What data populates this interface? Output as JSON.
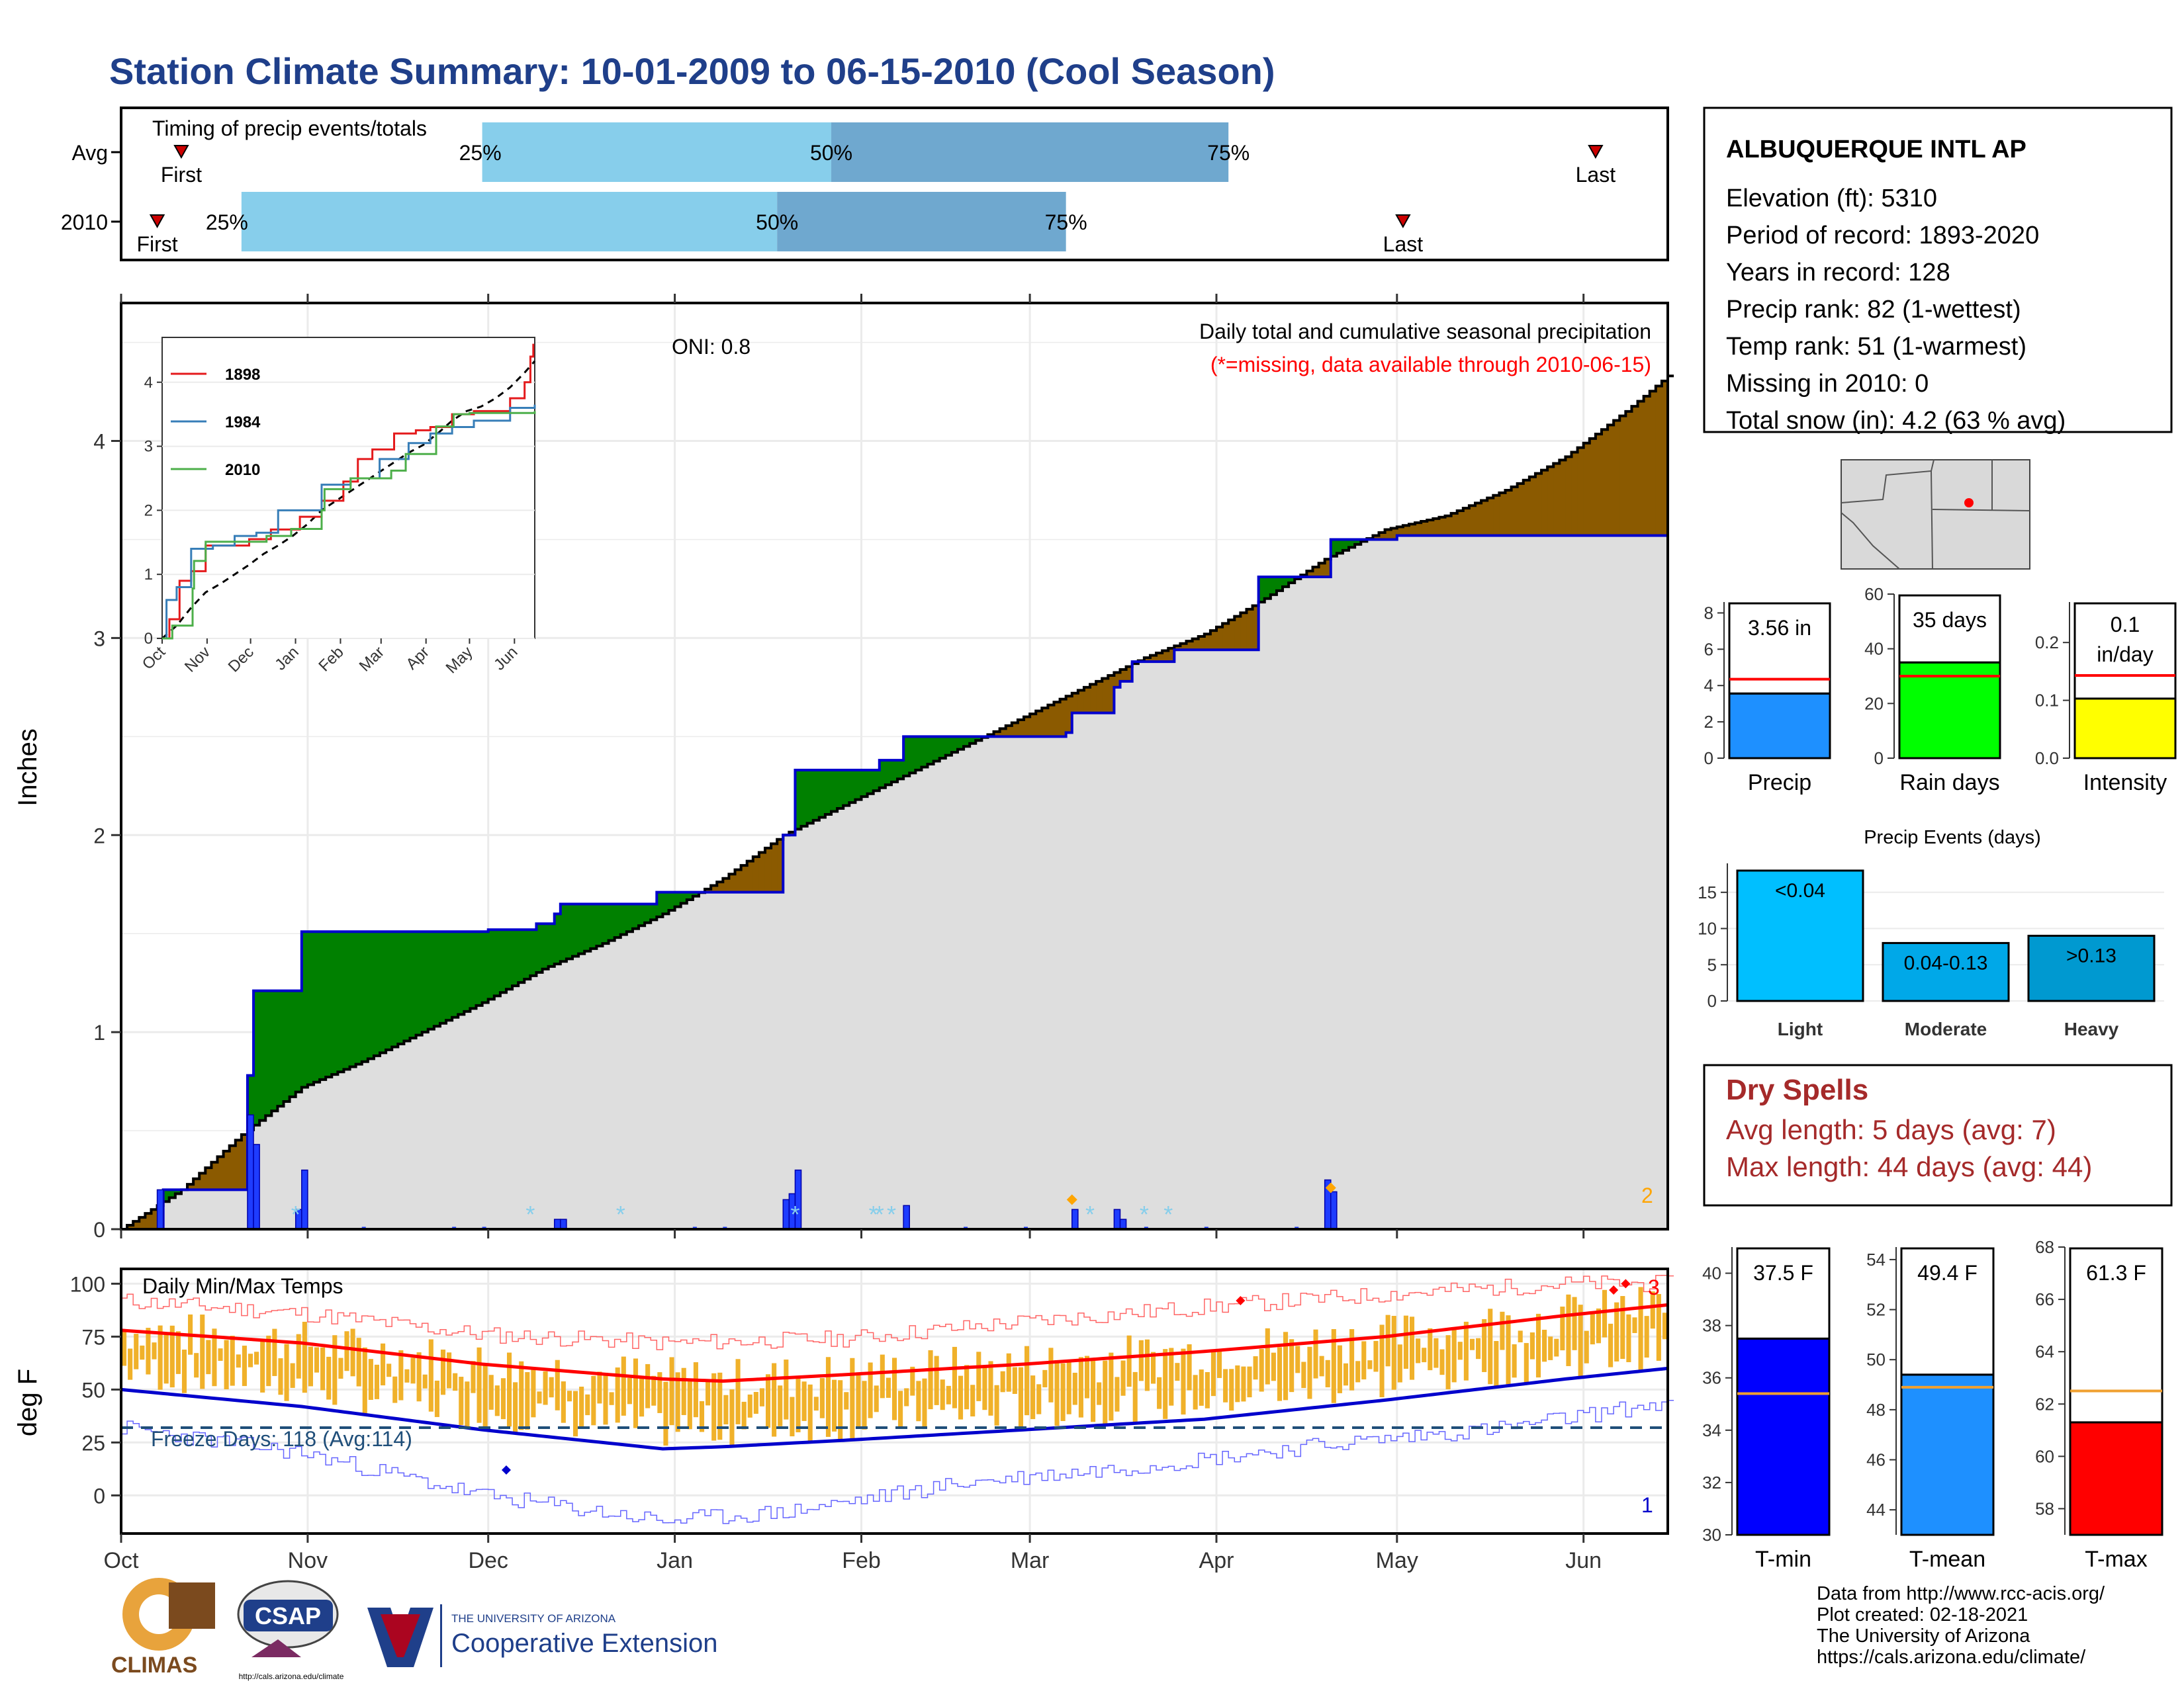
{
  "title": "Station Climate Summary: 10-01-2009 to 06-15-2010 (Cool Season)",
  "timing": {
    "title": "Timing of precip events/totals",
    "rows": [
      {
        "label": "Avg",
        "first_day": 10,
        "p25_day": 60,
        "p50_day": 118,
        "p75_day": 184,
        "last_day": 245,
        "first_label": "First",
        "p25_label": "25%",
        "p50_label": "50%",
        "p75_label": "75%",
        "last_label": "Last"
      },
      {
        "label": "2010",
        "first_day": 6,
        "p25_day": 20,
        "p50_day": 109,
        "p75_day": 157,
        "last_day": 213,
        "first_label": "First",
        "p25_label": "25%",
        "p50_label": "50%",
        "p75_label": "75%",
        "last_label": "Last"
      }
    ]
  },
  "station": {
    "name": "ALBUQUERQUE INTL AP",
    "lines": [
      "Elevation (ft): 5310",
      "Period of record: 1893-2020",
      "Years in record: 128",
      "Precip rank: 82 (1-wettest)",
      "Temp rank: 51 (1-warmest)",
      "Missing in 2010: 0",
      "Total snow (in): 4.2 (63 % avg)"
    ]
  },
  "precip_chart": {
    "ylabel": "Inches",
    "oni": "ONI: 0.8",
    "note1": "Daily total and cumulative seasonal precipitation",
    "note2": "(*=missing, data available through 2010-06-15)",
    "corner": "2",
    "months": [
      "Oct",
      "Nov",
      "Dec",
      "Jan",
      "Feb",
      "Mar",
      "Apr",
      "May",
      "Jun"
    ],
    "y_ticks": [
      "0",
      "1",
      "2",
      "3",
      "4"
    ]
  },
  "inset": {
    "months": [
      "Oct",
      "Nov",
      "Dec",
      "Jan",
      "Feb",
      "Mar",
      "Apr",
      "May",
      "Jun"
    ],
    "y_ticks": [
      "0",
      "1",
      "2",
      "3",
      "4"
    ],
    "legend": [
      {
        "name": "1898",
        "color": "#e41a1c"
      },
      {
        "name": "1984",
        "color": "#377eb8"
      },
      {
        "name": "2010",
        "color": "#4daf4a"
      }
    ]
  },
  "chart_data": [
    {
      "type": "area",
      "title": "Daily total and cumulative seasonal precipitation",
      "ylabel": "Inches",
      "x_unit": "day of season (0 = Oct 1)",
      "ylim": [
        0,
        4.7
      ],
      "observed_cumulative": [
        [
          0,
          0
        ],
        [
          6,
          0
        ],
        [
          7,
          0.2
        ],
        [
          20,
          0.2
        ],
        [
          21,
          0.78
        ],
        [
          22,
          1.21
        ],
        [
          29,
          1.21
        ],
        [
          30,
          1.51
        ],
        [
          61,
          1.52
        ],
        [
          69,
          1.55
        ],
        [
          72,
          1.6
        ],
        [
          73,
          1.65
        ],
        [
          89,
          1.71
        ],
        [
          109,
          1.71
        ],
        [
          110,
          2.0
        ],
        [
          112,
          2.33
        ],
        [
          125,
          2.33
        ],
        [
          126,
          2.38
        ],
        [
          129,
          2.38
        ],
        [
          130,
          2.5
        ],
        [
          157,
          2.52
        ],
        [
          158,
          2.62
        ],
        [
          164,
          2.62
        ],
        [
          165,
          2.75
        ],
        [
          166,
          2.78
        ],
        [
          168,
          2.88
        ],
        [
          175,
          2.94
        ],
        [
          188,
          2.94
        ],
        [
          189,
          3.31
        ],
        [
          200,
          3.31
        ],
        [
          201,
          3.5
        ],
        [
          212,
          3.52
        ],
        [
          257,
          3.55
        ]
      ],
      "average_cumulative": [
        [
          0,
          0
        ],
        [
          10,
          0.2
        ],
        [
          20,
          0.48
        ],
        [
          30,
          0.72
        ],
        [
          40,
          0.85
        ],
        [
          50,
          1.0
        ],
        [
          60,
          1.15
        ],
        [
          70,
          1.32
        ],
        [
          80,
          1.45
        ],
        [
          90,
          1.6
        ],
        [
          100,
          1.78
        ],
        [
          110,
          2.0
        ],
        [
          120,
          2.15
        ],
        [
          130,
          2.3
        ],
        [
          140,
          2.45
        ],
        [
          150,
          2.6
        ],
        [
          160,
          2.75
        ],
        [
          170,
          2.9
        ],
        [
          180,
          3.02
        ],
        [
          190,
          3.2
        ],
        [
          200,
          3.4
        ],
        [
          210,
          3.55
        ],
        [
          220,
          3.62
        ],
        [
          230,
          3.75
        ],
        [
          240,
          3.92
        ],
        [
          250,
          4.15
        ],
        [
          257,
          4.33
        ]
      ],
      "daily_bars": [
        [
          6,
          0.2
        ],
        [
          21,
          0.58
        ],
        [
          22,
          0.43
        ],
        [
          29,
          0.1
        ],
        [
          30,
          0.3
        ],
        [
          72,
          0.05
        ],
        [
          73,
          0.05
        ],
        [
          110,
          0.15
        ],
        [
          111,
          0.18
        ],
        [
          112,
          0.3
        ],
        [
          130,
          0.12
        ],
        [
          158,
          0.1
        ],
        [
          165,
          0.1
        ],
        [
          166,
          0.05
        ],
        [
          200,
          0.25
        ],
        [
          201,
          0.19
        ]
      ],
      "missing_days": [
        29,
        68,
        83,
        112,
        125,
        126,
        128,
        161,
        170,
        174
      ]
    },
    {
      "type": "line",
      "title": "Daily Min/Max Temps",
      "ylabel": "deg F",
      "y_ticks": [
        0,
        25,
        50,
        75,
        100
      ],
      "ylim": [
        -18,
        107
      ],
      "freeze_line": 32,
      "freeze_text": "Freeze Days: 118 (Avg:114)",
      "corner_red": "3",
      "corner_blue": "1",
      "series": [
        {
          "name": "avg_max",
          "color": "#ff0000",
          "points": [
            [
              0,
              78
            ],
            [
              30,
              72
            ],
            [
              60,
              62
            ],
            [
              90,
              55
            ],
            [
              100,
              54
            ],
            [
              120,
              57
            ],
            [
              150,
              62
            ],
            [
              180,
              68
            ],
            [
              210,
              75
            ],
            [
              240,
              85
            ],
            [
              257,
              90
            ]
          ]
        },
        {
          "name": "avg_min",
          "color": "#0000cc",
          "points": [
            [
              0,
              50
            ],
            [
              30,
              42
            ],
            [
              60,
              31
            ],
            [
              90,
              22
            ],
            [
              100,
              23
            ],
            [
              120,
              26
            ],
            [
              150,
              31
            ],
            [
              180,
              36
            ],
            [
              210,
              45
            ],
            [
              240,
              55
            ],
            [
              257,
              60
            ]
          ]
        },
        {
          "name": "record_max",
          "color": "#ff6666",
          "points": [
            [
              0,
              92
            ],
            [
              30,
              86
            ],
            [
              60,
              76
            ],
            [
              90,
              72
            ],
            [
              120,
              74
            ],
            [
              150,
              82
            ],
            [
              180,
              89
            ],
            [
              210,
              95
            ],
            [
              240,
              100
            ],
            [
              257,
              100
            ]
          ]
        },
        {
          "name": "record_min",
          "color": "#6666ff",
          "points": [
            [
              0,
              32
            ],
            [
              30,
              20
            ],
            [
              60,
              0
            ],
            [
              90,
              -12
            ],
            [
              110,
              -8
            ],
            [
              140,
              6
            ],
            [
              170,
              14
            ],
            [
              200,
              24
            ],
            [
              230,
              32
            ],
            [
              257,
              44
            ]
          ]
        }
      ]
    },
    {
      "type": "bar",
      "title": "",
      "categories": [
        "Precip"
      ],
      "values": [
        3.56
      ],
      "label": "3.56 in",
      "avg": 4.35,
      "y_ticks": [
        0,
        2,
        4,
        6,
        8
      ],
      "ylim": [
        0,
        8.6
      ],
      "color": "#1e90ff"
    },
    {
      "type": "bar",
      "title": "",
      "categories": [
        "Rain days"
      ],
      "values": [
        35
      ],
      "label": "35 days",
      "avg": 30,
      "y_ticks": [
        0,
        20,
        40,
        60
      ],
      "ylim": [
        0,
        60
      ],
      "color": "#00ff00"
    },
    {
      "type": "bar",
      "title": "",
      "categories": [
        "Intensity"
      ],
      "values": [
        0.103
      ],
      "label1": "0.1",
      "label2": "in/day",
      "avg": 0.143,
      "y_ticks": [
        "0.0",
        "0.1",
        "0.2"
      ],
      "ylim": [
        0,
        0.27
      ],
      "color": "#ffff00"
    },
    {
      "type": "bar",
      "title": "Precip Events (days)",
      "categories": [
        "Light",
        "Moderate",
        "Heavy"
      ],
      "bar_labels": [
        "<0.04",
        "0.04-0.13",
        ">0.13"
      ],
      "values": [
        18,
        8,
        9
      ],
      "y_ticks": [
        0,
        5,
        10,
        15
      ],
      "ylim": [
        0,
        19
      ],
      "colors": [
        "#00bfff",
        "#00a8e8",
        "#0099d0"
      ]
    },
    {
      "type": "bar",
      "title": "",
      "categories": [
        "T-min"
      ],
      "values": [
        37.5
      ],
      "label": "37.5 F",
      "avg": 35.4,
      "y_ticks": [
        30,
        32,
        34,
        36,
        38,
        40
      ],
      "ylim": [
        30,
        41
      ],
      "color": "#0000ff"
    },
    {
      "type": "bar",
      "title": "",
      "categories": [
        "T-mean"
      ],
      "values": [
        49.4
      ],
      "label": "49.4 F",
      "avg": 48.9,
      "y_ticks": [
        44,
        46,
        48,
        50,
        52,
        54
      ],
      "ylim": [
        43,
        54.5
      ],
      "color": "#1e90ff"
    },
    {
      "type": "bar",
      "title": "",
      "categories": [
        "T-max"
      ],
      "values": [
        61.3
      ],
      "label": "61.3 F",
      "avg": 62.5,
      "y_ticks": [
        58,
        60,
        62,
        64,
        66,
        68
      ],
      "ylim": [
        57,
        68
      ],
      "color": "#ff0000"
    }
  ],
  "dry_spells": {
    "title": "Dry Spells",
    "line1": "Avg length: 5 days (avg: 7)",
    "line2": "Max length: 44 days (avg: 44)"
  },
  "temp_chart": {
    "title": "Daily Min/Max Temps",
    "ylabel": "deg F"
  },
  "footer": {
    "lines": [
      "Data from http://www.rcc-acis.org/",
      "Plot created: 02-18-2021",
      "The University of Arizona",
      "https://cals.arizona.edu/climate/"
    ]
  },
  "logos": {
    "climas": "CLIMAS",
    "csap": "CSAP",
    "csap_url": "http://cals.arizona.edu/climate",
    "ua_small": "THE UNIVERSITY OF ARIZONA",
    "ua_big": "Cooperative Extension"
  }
}
